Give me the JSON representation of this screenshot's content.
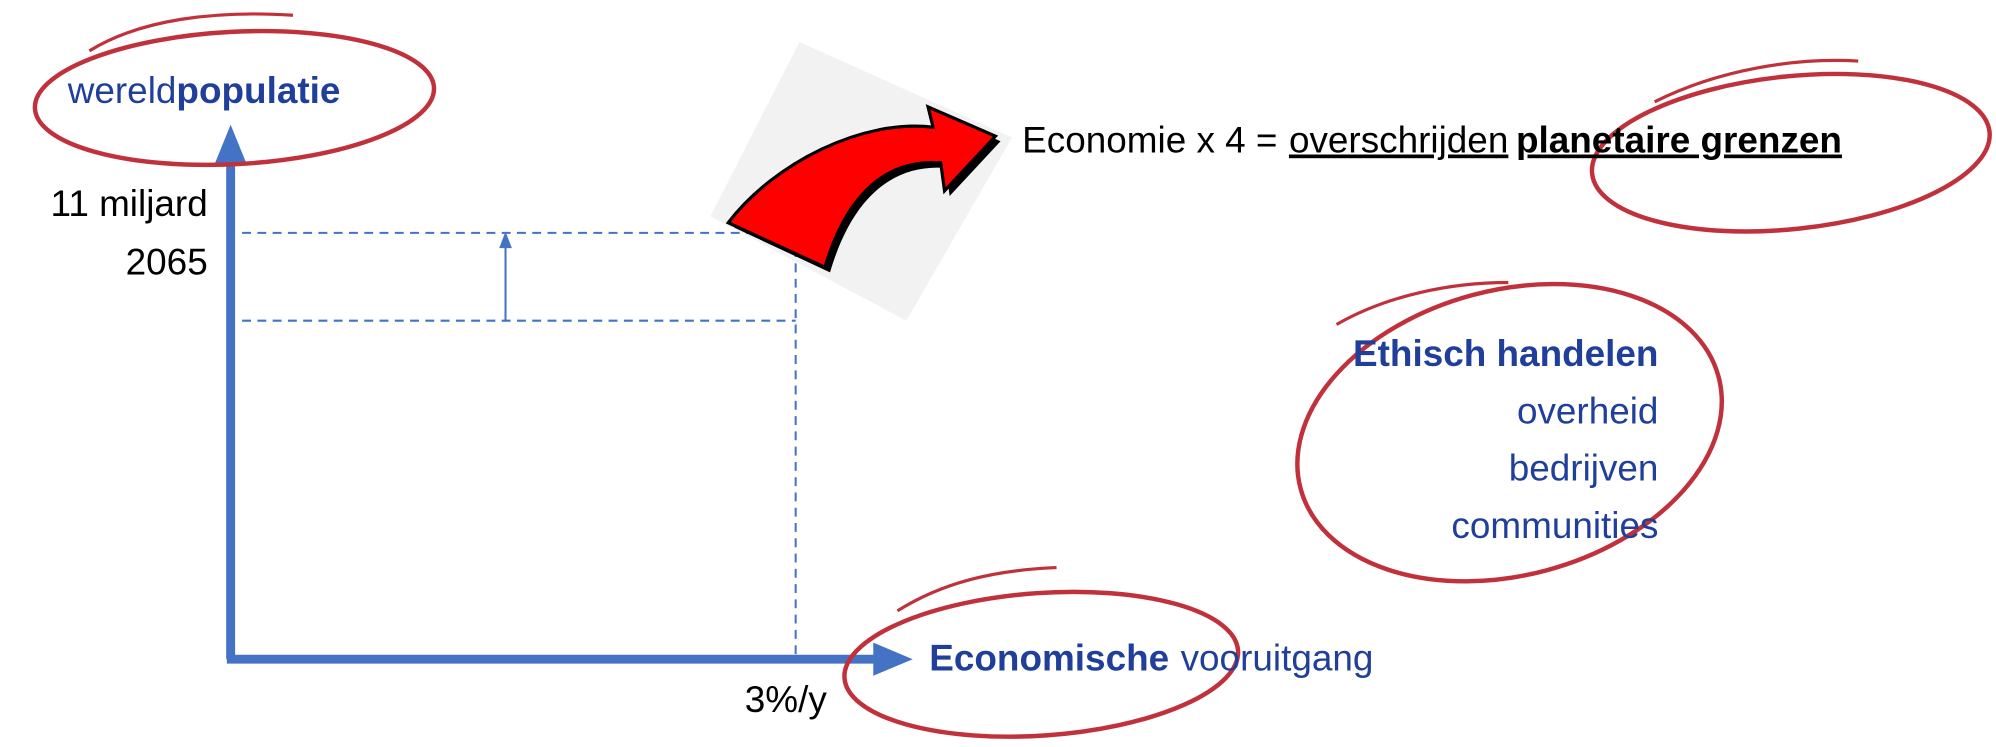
{
  "y_axis": {
    "label_regular": "wereld",
    "label_bold": "populatie",
    "value": "11 miljard",
    "year": "2065"
  },
  "statement": {
    "prefix": "Economie x 4 =",
    "underlined": "overschrijden",
    "bold": "planetaire grenzen"
  },
  "actors": {
    "title": "Ethisch handelen",
    "items": [
      "overheid",
      "bedrijven",
      "communities"
    ]
  },
  "x_axis": {
    "label_bold": "Economische",
    "label_regular": "vooruitgang",
    "rate": "3%/y"
  }
}
